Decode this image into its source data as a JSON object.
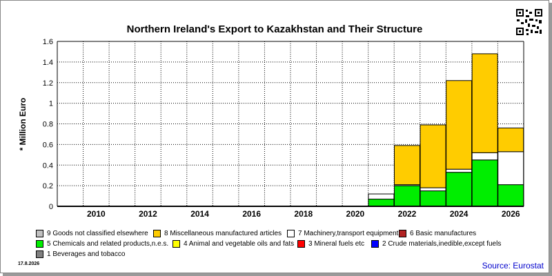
{
  "chart_data": {
    "type": "bar",
    "stacked": true,
    "title": "Northern Ireland's Export to Kazakhstan and Their Structure",
    "ylabel": "* Million Euro",
    "xlabel": "",
    "ylim": [
      0,
      1.6
    ],
    "yticks": [
      "0",
      "0.2",
      "0.4",
      "0.6",
      "0.8",
      "1",
      "1.2",
      "1.4",
      "1.6"
    ],
    "x_tick_labels": [
      "2010",
      "2012",
      "2014",
      "2016",
      "2018",
      "2020",
      "2022",
      "2024",
      "2026"
    ],
    "grid": true,
    "categories": [
      "2009",
      "2010",
      "2011",
      "2012",
      "2013",
      "2014",
      "2015",
      "2016",
      "2017",
      "2018",
      "2019",
      "2020",
      "2021",
      "2022",
      "2023",
      "2024",
      "2025",
      "2026"
    ],
    "series": [
      {
        "name": "5 Chemicals and related products,n.e.s.",
        "color": "#00ee00",
        "values": [
          0,
          0,
          0,
          0,
          0,
          0,
          0,
          0,
          0,
          0,
          0,
          0,
          0.07,
          0.2,
          0.15,
          0.33,
          0.45,
          0.21
        ]
      },
      {
        "name": "7 Machinery,transport equipment",
        "color": "#ffffff",
        "values": [
          0,
          0,
          0,
          0,
          0,
          0,
          0,
          0,
          0,
          0,
          0,
          0,
          0.05,
          0.01,
          0.03,
          0.03,
          0.07,
          0.32
        ]
      },
      {
        "name": "8 Miscellaneous manufactured articles",
        "color": "#ffcc00",
        "values": [
          0,
          0,
          0,
          0,
          0,
          0,
          0,
          0,
          0,
          0,
          0,
          0,
          0,
          0.38,
          0.61,
          0.86,
          0.96,
          0.23
        ]
      }
    ],
    "legend_position": "bottom"
  },
  "legend": [
    {
      "label": "9 Goods not classified elsewhere",
      "color": "#c0c0c0"
    },
    {
      "label": "8 Miscellaneous manufactured articles",
      "color": "#ffcc00"
    },
    {
      "label": "7 Machinery,transport equipment",
      "color": "#ffffff"
    },
    {
      "label": "6 Basic manufactures",
      "color": "#b22222"
    },
    {
      "label": "5 Chemicals and related products,n.e.s.",
      "color": "#00ee00"
    },
    {
      "label": "4 Animal and vegetable oils and fats",
      "color": "#ffff00"
    },
    {
      "label": "3 Mineral fuels etc",
      "color": "#ff0000"
    },
    {
      "label": "2 Crude materials,inedible,except fuels",
      "color": "#0000ff"
    },
    {
      "label": "1 Beverages and tobacco",
      "color": "#808080"
    }
  ],
  "footer": {
    "date": "17.8.2026",
    "source": "Source: Eurostat"
  }
}
